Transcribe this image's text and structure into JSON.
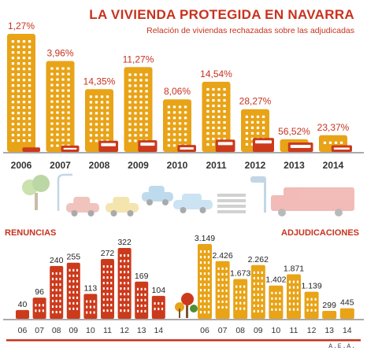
{
  "header": {
    "title": "LA VIVIENDA PROTEGIDA EN NAVARRA",
    "subtitle": "Relación de viviendas rechazadas sobre las adjudicadas"
  },
  "labels": {
    "renuncias": "RENUNCIAS",
    "adjudicaciones": "ADJUDICACIONES",
    "credit": "A.E.A."
  },
  "colors": {
    "accent": "#c8321e",
    "adjudicadas": "#e8a317",
    "rechazadas": "#cc3a1c"
  },
  "icons": [
    "tree-icon",
    "streetlamp-icon",
    "car-icon",
    "taxi-icon",
    "car-icon",
    "car-icon",
    "crosswalk-icon",
    "traffic-light-icon",
    "truck-icon"
  ],
  "chart_data": [
    {
      "type": "bar",
      "title": "Relación de viviendas rechazadas sobre las adjudicadas",
      "categories": [
        "2006",
        "2007",
        "2008",
        "2009",
        "2010",
        "2011",
        "2012",
        "2013",
        "2014"
      ],
      "values": [
        1.27,
        3.96,
        14.35,
        11.27,
        8.06,
        14.54,
        28.27,
        56.52,
        23.37
      ],
      "value_labels": [
        "1,27%",
        "3,96%",
        "14,35%",
        "11,27%",
        "8,06%",
        "14,54%",
        "28,27%",
        "56,52%",
        "23,37%"
      ],
      "unit": "%"
    },
    {
      "type": "bar",
      "title": "RENUNCIAS",
      "categories": [
        "06",
        "07",
        "08",
        "09",
        "10",
        "11",
        "12",
        "13",
        "14"
      ],
      "values": [
        40,
        96,
        240,
        255,
        113,
        272,
        322,
        169,
        104
      ],
      "value_labels": [
        "40",
        "96",
        "240",
        "255",
        "113",
        "272",
        "322",
        "169",
        "104"
      ]
    },
    {
      "type": "bar",
      "title": "ADJUDICACIONES",
      "categories": [
        "06",
        "07",
        "08",
        "09",
        "10",
        "11",
        "12",
        "13",
        "14"
      ],
      "values": [
        3149,
        2426,
        1673,
        2262,
        1402,
        1871,
        1139,
        299,
        445
      ],
      "value_labels": [
        "3.149",
        "2.426",
        "1.673",
        "2.262",
        "1.402",
        "1.871",
        "1.139",
        "299",
        "445"
      ]
    }
  ]
}
